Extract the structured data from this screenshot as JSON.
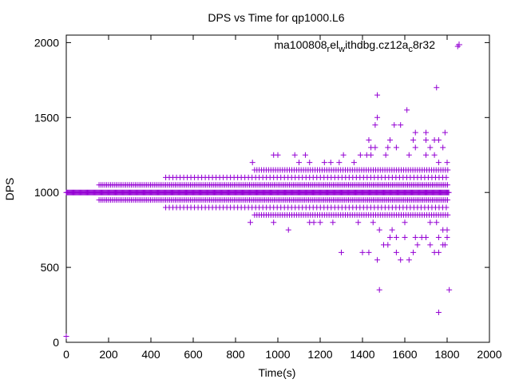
{
  "chart_data": {
    "type": "scatter",
    "title": "DPS vs Time for qp1000.L6",
    "xlabel": "Time(s)",
    "ylabel": "DPS",
    "xlim": [
      0,
      2000
    ],
    "ylim": [
      0,
      2050
    ],
    "xticks": [
      0,
      200,
      400,
      600,
      800,
      1000,
      1200,
      1400,
      1600,
      1800,
      2000
    ],
    "yticks": [
      0,
      500,
      1000,
      1500,
      2000
    ],
    "grid": false,
    "legend_position": "top-right",
    "marker": "plus",
    "series": [
      {
        "name": "ma100808_rel_withdbg.cz12a_c8r32",
        "legend_parts": [
          {
            "text": "ma100808",
            "shift": "base"
          },
          {
            "text": "r",
            "shift": "sub"
          },
          {
            "text": "el",
            "shift": "base"
          },
          {
            "text": "w",
            "shift": "sub"
          },
          {
            "text": "ithdbg.cz12a",
            "shift": "base"
          },
          {
            "text": "c",
            "shift": "sub"
          },
          {
            "text": "8r32",
            "shift": "base"
          }
        ],
        "color": "#9400d3",
        "points": [
          [
            0,
            40
          ],
          [
            1850,
            1975
          ],
          [
            1470,
            1650
          ],
          [
            1750,
            1700
          ],
          [
            1610,
            1550
          ],
          [
            1460,
            1450
          ],
          [
            1470,
            1500
          ],
          [
            1550,
            1450
          ],
          [
            1580,
            1450
          ],
          [
            1790,
            1400
          ],
          [
            1650,
            1400
          ],
          [
            1700,
            1400
          ],
          [
            1430,
            1350
          ],
          [
            1440,
            1300
          ],
          [
            1460,
            1300
          ],
          [
            1530,
            1350
          ],
          [
            1520,
            1300
          ],
          [
            1560,
            1300
          ],
          [
            1640,
            1350
          ],
          [
            1650,
            1300
          ],
          [
            1700,
            1350
          ],
          [
            1720,
            1300
          ],
          [
            1740,
            1350
          ],
          [
            1760,
            1350
          ],
          [
            1780,
            1300
          ],
          [
            1420,
            1250
          ],
          [
            1390,
            1250
          ],
          [
            1310,
            1250
          ],
          [
            1130,
            1250
          ],
          [
            1100,
            1200
          ],
          [
            1080,
            1250
          ],
          [
            1000,
            1250
          ],
          [
            980,
            1250
          ],
          [
            880,
            1200
          ],
          [
            1150,
            1200
          ],
          [
            1220,
            1200
          ],
          [
            1250,
            1200
          ],
          [
            1290,
            1200
          ],
          [
            1360,
            1200
          ],
          [
            1440,
            1250
          ],
          [
            1510,
            1250
          ],
          [
            1620,
            1250
          ],
          [
            1700,
            1250
          ],
          [
            1740,
            1250
          ],
          [
            1760,
            1200
          ],
          [
            1800,
            1200
          ],
          [
            1480,
            350
          ],
          [
            1810,
            350
          ],
          [
            1760,
            200
          ],
          [
            1300,
            600
          ],
          [
            1400,
            600
          ],
          [
            1430,
            600
          ],
          [
            1470,
            550
          ],
          [
            1500,
            650
          ],
          [
            1520,
            650
          ],
          [
            1560,
            600
          ],
          [
            1580,
            550
          ],
          [
            1620,
            550
          ],
          [
            1640,
            600
          ],
          [
            1660,
            650
          ],
          [
            1720,
            650
          ],
          [
            1740,
            600
          ],
          [
            1760,
            600
          ],
          [
            1780,
            650
          ],
          [
            1790,
            650
          ],
          [
            1530,
            700
          ],
          [
            1560,
            700
          ],
          [
            1600,
            700
          ],
          [
            1650,
            700
          ],
          [
            1680,
            700
          ],
          [
            1700,
            700
          ],
          [
            1760,
            700
          ],
          [
            1800,
            700
          ],
          [
            870,
            800
          ],
          [
            980,
            800
          ],
          [
            1050,
            750
          ],
          [
            1150,
            800
          ],
          [
            1170,
            800
          ],
          [
            1200,
            800
          ],
          [
            1260,
            800
          ],
          [
            1380,
            800
          ],
          [
            1450,
            800
          ],
          [
            1480,
            750
          ],
          [
            1540,
            750
          ],
          [
            1600,
            800
          ],
          [
            1720,
            800
          ],
          [
            1750,
            800
          ],
          [
            1780,
            750
          ],
          [
            1800,
            750
          ]
        ],
        "bands": [
          {
            "y": 1000,
            "x": [
              0,
              1810
            ],
            "step": 4
          },
          {
            "y": 1050,
            "x": [
              155,
              1810
            ],
            "step": 9
          },
          {
            "y": 950,
            "x": [
              155,
              1810
            ],
            "step": 9
          },
          {
            "y": 1100,
            "x": [
              470,
              1810
            ],
            "step": 17
          },
          {
            "y": 900,
            "x": [
              470,
              1810
            ],
            "step": 17
          },
          {
            "y": 1150,
            "x": [
              890,
              1810
            ],
            "step": 11
          },
          {
            "y": 850,
            "x": [
              890,
              1810
            ],
            "step": 11
          }
        ]
      }
    ]
  }
}
